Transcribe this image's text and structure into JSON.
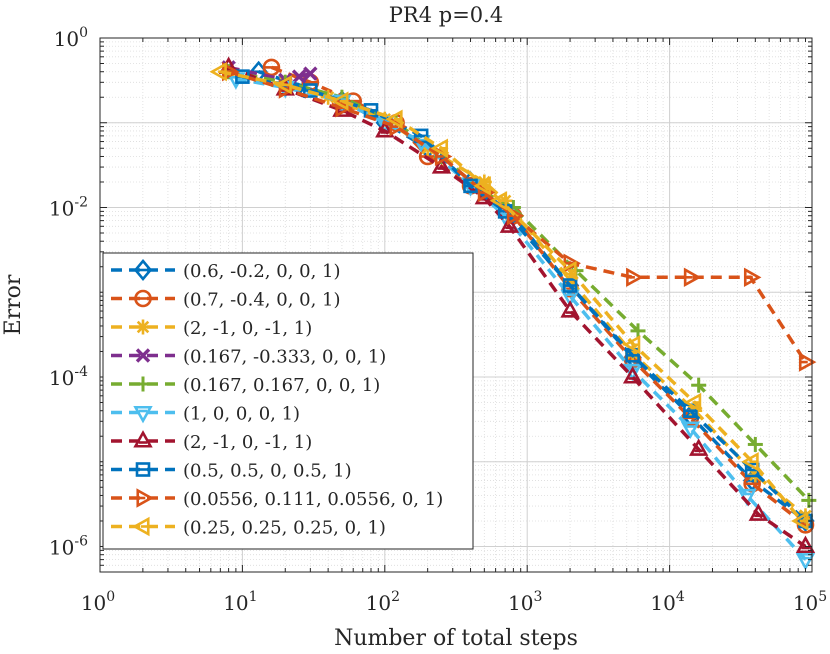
{
  "chart_data": {
    "type": "line",
    "title": "PR4 p=0.4",
    "xlabel": "Number of total steps",
    "ylabel": "Error",
    "xscale": "log",
    "yscale": "log",
    "xlim": [
      1,
      100000
    ],
    "ylim": [
      5e-07,
      1
    ],
    "x_ticks": [
      {
        "value": 1,
        "base": "10",
        "exp": "0"
      },
      {
        "value": 10,
        "base": "10",
        "exp": "1"
      },
      {
        "value": 100,
        "base": "10",
        "exp": "2"
      },
      {
        "value": 1000,
        "base": "10",
        "exp": "3"
      },
      {
        "value": 10000,
        "base": "10",
        "exp": "4"
      },
      {
        "value": 100000,
        "base": "10",
        "exp": "5"
      }
    ],
    "y_ticks": [
      {
        "value": 1e-06,
        "base": "10",
        "exp": "-6"
      },
      {
        "value": 0.0001,
        "base": "10",
        "exp": "-4"
      },
      {
        "value": 0.01,
        "base": "10",
        "exp": "-2"
      },
      {
        "value": 1,
        "base": "10",
        "exp": "0"
      }
    ],
    "grid": true,
    "legend_position": "lower-left",
    "series": [
      {
        "name": "(0.6, -0.2, 0, 0, 1)",
        "color": "#0072BD",
        "marker": "diamond",
        "x": [
          13,
          25,
          50,
          100,
          200,
          400,
          800,
          2000,
          5500,
          14000,
          38000,
          90000
        ],
        "y": [
          0.4,
          0.28,
          0.18,
          0.1,
          0.05,
          0.02,
          0.008,
          0.0012,
          0.00017,
          3.5e-05,
          6e-06,
          2e-06
        ]
      },
      {
        "name": "(0.7, -0.4, 0, 0, 1)",
        "color": "#D95319",
        "marker": "circle",
        "x": [
          16,
          30,
          60,
          120,
          200,
          400,
          800,
          2000,
          5500,
          14000,
          38000,
          90000
        ],
        "y": [
          0.45,
          0.3,
          0.18,
          0.1,
          0.04,
          0.018,
          0.008,
          0.0011,
          0.00016,
          3.3e-05,
          5.5e-06,
          1.8e-06
        ]
      },
      {
        "name": "(2, -1, 0, -1, 1)",
        "color": "#EDB120",
        "marker": "asterisk",
        "x": [
          8,
          20,
          40,
          100,
          200,
          500,
          700,
          2000,
          5500,
          15000,
          40000,
          90000
        ],
        "y": [
          0.4,
          0.3,
          0.2,
          0.11,
          0.05,
          0.02,
          0.012,
          0.0014,
          0.00019,
          4e-05,
          7e-06,
          2.3e-06
        ]
      },
      {
        "name": "(0.167, -0.333, 0, 0, 1)",
        "color": "#7E2F8E",
        "marker": "x",
        "x": [
          8,
          20,
          25,
          30
        ],
        "y": [
          0.45,
          0.32,
          0.35,
          0.38
        ]
      },
      {
        "name": "(0.167, 0.167, 0, 0, 1)",
        "color": "#77AC30",
        "marker": "plus",
        "x": [
          8,
          20,
          50,
          120,
          250,
          500,
          800,
          2200,
          6000,
          16000,
          40000,
          95000
        ],
        "y": [
          0.4,
          0.3,
          0.2,
          0.1,
          0.04,
          0.015,
          0.01,
          0.0018,
          0.00035,
          8e-05,
          1.6e-05,
          3.5e-06
        ]
      },
      {
        "name": "(1, 0, 0, 0, 1)",
        "color": "#4DBEEE",
        "marker": "triangle-down",
        "x": [
          9,
          20,
          50,
          100,
          180,
          400,
          700,
          2000,
          5500,
          14000,
          35000,
          90000
        ],
        "y": [
          0.33,
          0.26,
          0.18,
          0.1,
          0.06,
          0.018,
          0.008,
          0.0009,
          0.00012,
          2.5e-05,
          4e-06,
          7e-07
        ]
      },
      {
        "name": "(2, -1, 0, -1, 1)",
        "color": "#A2142F",
        "marker": "triangle-up",
        "x": [
          8,
          20,
          50,
          100,
          250,
          500,
          750,
          2000,
          5500,
          16000,
          42000,
          90000
        ],
        "y": [
          0.45,
          0.25,
          0.14,
          0.08,
          0.03,
          0.013,
          0.006,
          0.0006,
          0.0001,
          1.4e-05,
          2.4e-06,
          1e-06
        ]
      },
      {
        "name": "(0.5, 0.5, 0, 0.5, 1)",
        "color": "#0072BD",
        "marker": "square",
        "x": [
          10,
          30,
          80,
          180,
          400,
          700,
          2000,
          5500,
          14000,
          38000,
          90000
        ],
        "y": [
          0.35,
          0.24,
          0.14,
          0.07,
          0.018,
          0.009,
          0.0012,
          0.00018,
          4e-05,
          8e-06,
          2e-06
        ]
      },
      {
        "name": "(0.0556, 0.111, 0.0556, 0, 1)",
        "color": "#D95319",
        "marker": "triangle-right",
        "x": [
          8,
          20,
          50,
          120,
          250,
          500,
          800,
          2000,
          5500,
          14000,
          37000,
          90000
        ],
        "y": [
          0.4,
          0.25,
          0.15,
          0.09,
          0.04,
          0.015,
          0.008,
          0.0022,
          0.0015,
          0.0015,
          0.0015,
          0.00015
        ]
      },
      {
        "name": "(0.25, 0.25, 0.25, 0, 1)",
        "color": "#EDB120",
        "marker": "triangle-left",
        "x": [
          7,
          20,
          50,
          120,
          250,
          500,
          650,
          2000,
          5600,
          15000,
          38000,
          85000
        ],
        "y": [
          0.4,
          0.28,
          0.18,
          0.11,
          0.05,
          0.018,
          0.012,
          0.0018,
          0.00024,
          5e-05,
          1e-05,
          2e-06
        ]
      }
    ]
  }
}
